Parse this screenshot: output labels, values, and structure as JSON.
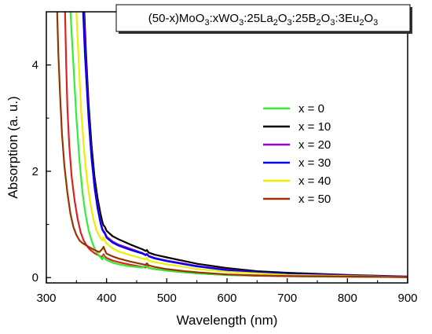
{
  "chart_data": {
    "type": "line",
    "title_parts": [
      {
        "t": "(50-x)MoO",
        "sub": false
      },
      {
        "t": "3",
        "sub": true
      },
      {
        "t": ":xWO",
        "sub": false
      },
      {
        "t": "3",
        "sub": true
      },
      {
        "t": ":25La",
        "sub": false
      },
      {
        "t": "2",
        "sub": true
      },
      {
        "t": "O",
        "sub": false
      },
      {
        "t": "3",
        "sub": true
      },
      {
        "t": ":25B",
        "sub": false
      },
      {
        "t": "2",
        "sub": true
      },
      {
        "t": "O",
        "sub": false
      },
      {
        "t": "3",
        "sub": true
      },
      {
        "t": ":3Eu",
        "sub": false
      },
      {
        "t": "2",
        "sub": true
      },
      {
        "t": "O",
        "sub": false
      },
      {
        "t": "3",
        "sub": true
      }
    ],
    "xlabel": "Wavelength (nm)",
    "ylabel": "Absorption (a. u.)",
    "xlim": [
      300,
      900
    ],
    "ylim": [
      -0.1,
      5.0
    ],
    "xticks": [
      "300",
      "400",
      "500",
      "600",
      "700",
      "800",
      "900"
    ],
    "yticks": [
      "0",
      "2",
      "4"
    ],
    "legend_position": "right",
    "grid": false,
    "series": [
      {
        "name": "x = 0",
        "color": "#33ee33",
        "points": [
          [
            340,
            5.0
          ],
          [
            345,
            4.0
          ],
          [
            350,
            3.0
          ],
          [
            355,
            2.2
          ],
          [
            360,
            1.6
          ],
          [
            365,
            1.2
          ],
          [
            370,
            0.9
          ],
          [
            375,
            0.7
          ],
          [
            380,
            0.55
          ],
          [
            385,
            0.45
          ],
          [
            390,
            0.38
          ],
          [
            393,
            0.34
          ],
          [
            395,
            0.4
          ],
          [
            397,
            0.36
          ],
          [
            400,
            0.33
          ],
          [
            410,
            0.28
          ],
          [
            420,
            0.25
          ],
          [
            440,
            0.21
          ],
          [
            460,
            0.19
          ],
          [
            465,
            0.22
          ],
          [
            468,
            0.19
          ],
          [
            480,
            0.16
          ],
          [
            500,
            0.13
          ],
          [
            550,
            0.08
          ],
          [
            600,
            0.05
          ],
          [
            650,
            0.04
          ],
          [
            700,
            0.03
          ],
          [
            800,
            0.02
          ],
          [
            900,
            0.01
          ]
        ]
      },
      {
        "name": "x = 10",
        "color": "#000000",
        "points": [
          [
            363,
            5.0
          ],
          [
            366,
            4.2
          ],
          [
            370,
            3.3
          ],
          [
            375,
            2.5
          ],
          [
            380,
            1.9
          ],
          [
            385,
            1.5
          ],
          [
            390,
            1.2
          ],
          [
            393,
            1.05
          ],
          [
            395,
            0.98
          ],
          [
            397,
            0.96
          ],
          [
            400,
            0.88
          ],
          [
            410,
            0.78
          ],
          [
            420,
            0.72
          ],
          [
            440,
            0.62
          ],
          [
            460,
            0.53
          ],
          [
            465,
            0.5
          ],
          [
            467,
            0.52
          ],
          [
            470,
            0.47
          ],
          [
            480,
            0.43
          ],
          [
            500,
            0.38
          ],
          [
            530,
            0.31
          ],
          [
            550,
            0.26
          ],
          [
            600,
            0.18
          ],
          [
            650,
            0.12
          ],
          [
            700,
            0.09
          ],
          [
            800,
            0.05
          ],
          [
            900,
            0.02
          ]
        ]
      },
      {
        "name": "x = 20",
        "color": "#9900cc",
        "points": [
          [
            362,
            5.0
          ],
          [
            365,
            4.2
          ],
          [
            370,
            3.1
          ],
          [
            375,
            2.3
          ],
          [
            380,
            1.75
          ],
          [
            385,
            1.35
          ],
          [
            390,
            1.05
          ],
          [
            393,
            0.92
          ],
          [
            395,
            0.88
          ],
          [
            397,
            0.85
          ],
          [
            400,
            0.77
          ],
          [
            410,
            0.68
          ],
          [
            420,
            0.62
          ],
          [
            440,
            0.54
          ],
          [
            460,
            0.46
          ],
          [
            465,
            0.43
          ],
          [
            467,
            0.45
          ],
          [
            470,
            0.41
          ],
          [
            480,
            0.37
          ],
          [
            500,
            0.32
          ],
          [
            530,
            0.26
          ],
          [
            550,
            0.22
          ],
          [
            600,
            0.15
          ],
          [
            650,
            0.1
          ],
          [
            700,
            0.07
          ],
          [
            800,
            0.04
          ],
          [
            900,
            0.015
          ]
        ]
      },
      {
        "name": "x = 30",
        "color": "#0000ee",
        "points": [
          [
            361,
            5.0
          ],
          [
            364,
            4.2
          ],
          [
            370,
            3.0
          ],
          [
            375,
            2.25
          ],
          [
            380,
            1.7
          ],
          [
            385,
            1.3
          ],
          [
            390,
            1.02
          ],
          [
            393,
            0.9
          ],
          [
            395,
            0.86
          ],
          [
            397,
            0.83
          ],
          [
            400,
            0.75
          ],
          [
            410,
            0.66
          ],
          [
            420,
            0.6
          ],
          [
            440,
            0.52
          ],
          [
            460,
            0.45
          ],
          [
            465,
            0.42
          ],
          [
            467,
            0.44
          ],
          [
            470,
            0.4
          ],
          [
            480,
            0.36
          ],
          [
            500,
            0.31
          ],
          [
            530,
            0.25
          ],
          [
            550,
            0.21
          ],
          [
            600,
            0.14
          ],
          [
            650,
            0.1
          ],
          [
            700,
            0.07
          ],
          [
            800,
            0.035
          ],
          [
            900,
            0.01
          ]
        ]
      },
      {
        "name": "x = 40",
        "color": "#eeee00",
        "points": [
          [
            350,
            5.0
          ],
          [
            354,
            4.0
          ],
          [
            358,
            3.1
          ],
          [
            363,
            2.35
          ],
          [
            368,
            1.8
          ],
          [
            373,
            1.4
          ],
          [
            378,
            1.1
          ],
          [
            383,
            0.9
          ],
          [
            388,
            0.78
          ],
          [
            393,
            0.7
          ],
          [
            395,
            0.76
          ],
          [
            397,
            0.7
          ],
          [
            400,
            0.64
          ],
          [
            410,
            0.55
          ],
          [
            420,
            0.49
          ],
          [
            440,
            0.42
          ],
          [
            460,
            0.36
          ],
          [
            465,
            0.34
          ],
          [
            467,
            0.37
          ],
          [
            470,
            0.32
          ],
          [
            480,
            0.29
          ],
          [
            500,
            0.25
          ],
          [
            530,
            0.2
          ],
          [
            550,
            0.16
          ],
          [
            600,
            0.11
          ],
          [
            650,
            0.08
          ],
          [
            700,
            0.05
          ],
          [
            800,
            0.03
          ],
          [
            900,
            0.01
          ]
        ]
      },
      {
        "name": "x = 50",
        "color": "#993300",
        "points": [
          [
            318,
            5.0
          ],
          [
            320,
            4.2
          ],
          [
            323,
            3.4
          ],
          [
            326,
            2.7
          ],
          [
            330,
            2.1
          ],
          [
            335,
            1.6
          ],
          [
            340,
            1.2
          ],
          [
            345,
            0.95
          ],
          [
            350,
            0.8
          ],
          [
            355,
            0.7
          ],
          [
            360,
            0.65
          ],
          [
            370,
            0.58
          ],
          [
            380,
            0.52
          ],
          [
            388,
            0.48
          ],
          [
            393,
            0.54
          ],
          [
            395,
            0.58
          ],
          [
            397,
            0.52
          ],
          [
            400,
            0.45
          ],
          [
            410,
            0.4
          ],
          [
            420,
            0.36
          ],
          [
            440,
            0.3
          ],
          [
            460,
            0.25
          ],
          [
            465,
            0.24
          ],
          [
            467,
            0.27
          ],
          [
            470,
            0.23
          ],
          [
            480,
            0.2
          ],
          [
            500,
            0.16
          ],
          [
            530,
            0.12
          ],
          [
            550,
            0.1
          ],
          [
            600,
            0.06
          ],
          [
            650,
            0.04
          ],
          [
            700,
            0.03
          ],
          [
            800,
            0.02
          ],
          [
            900,
            0.01
          ]
        ]
      }
    ],
    "extra_series": [
      {
        "color": "#dd2222",
        "points": [
          [
            331,
            5.0
          ],
          [
            333,
            4.0
          ],
          [
            335,
            3.2
          ],
          [
            338,
            2.5
          ],
          [
            342,
            1.9
          ],
          [
            347,
            1.45
          ],
          [
            352,
            1.1
          ],
          [
            357,
            0.85
          ],
          [
            362,
            0.7
          ],
          [
            367,
            0.6
          ],
          [
            372,
            0.53
          ],
          [
            380,
            0.46
          ],
          [
            388,
            0.41
          ],
          [
            393,
            0.39
          ],
          [
            395,
            0.44
          ],
          [
            397,
            0.4
          ],
          [
            400,
            0.37
          ],
          [
            410,
            0.32
          ],
          [
            420,
            0.29
          ],
          [
            440,
            0.24
          ],
          [
            460,
            0.2
          ],
          [
            465,
            0.19
          ],
          [
            467,
            0.22
          ],
          [
            470,
            0.18
          ],
          [
            480,
            0.16
          ],
          [
            500,
            0.13
          ],
          [
            530,
            0.1
          ],
          [
            550,
            0.08
          ],
          [
            600,
            0.05
          ],
          [
            650,
            0.035
          ],
          [
            700,
            0.025
          ],
          [
            800,
            0.015
          ],
          [
            900,
            0.01
          ]
        ]
      }
    ]
  }
}
